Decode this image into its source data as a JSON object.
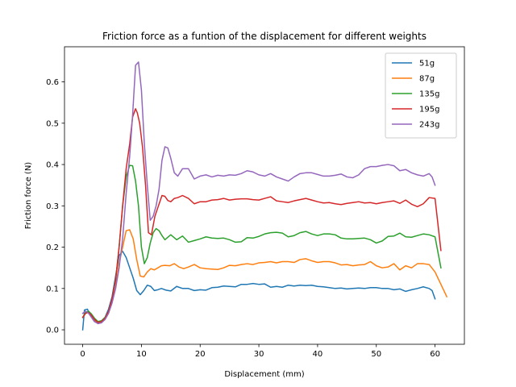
{
  "chart_data": {
    "type": "line",
    "title": "Friction force as a funtion of the displacement for different weights",
    "xlabel": "Displacement (mm)",
    "ylabel": "Friction force (N)",
    "xlim": [
      -3.1,
      65.0
    ],
    "ylim": [
      -0.035,
      0.685
    ],
    "xticks": [
      0,
      10,
      20,
      30,
      40,
      50,
      60
    ],
    "yticks": [
      0.0,
      0.1,
      0.2,
      0.3,
      0.4,
      0.5,
      0.6
    ],
    "grid": false,
    "legend_position": "upper right",
    "series": [
      {
        "name": "51g",
        "color": "#1f77b4",
        "x": [
          0,
          0.3,
          0.8,
          1.3,
          2,
          2.6,
          3.2,
          3.8,
          4.4,
          5,
          5.6,
          6.2,
          6.8,
          7.4,
          8,
          8.6,
          9.2,
          9.8,
          10.4,
          11,
          11.6,
          12.2,
          12.8,
          13.4,
          14.2,
          15,
          16,
          17,
          18,
          19,
          20,
          21,
          22,
          23,
          24,
          25,
          26,
          27,
          28,
          29,
          30,
          31,
          32,
          33,
          34,
          35,
          36,
          37,
          38,
          39,
          40,
          41,
          42,
          43,
          44,
          45,
          46,
          47,
          48,
          49,
          50,
          51,
          52,
          53,
          54,
          55,
          56,
          57,
          58,
          59,
          59.5,
          60
        ],
        "y": [
          0.0,
          0.048,
          0.05,
          0.035,
          0.02,
          0.018,
          0.02,
          0.03,
          0.05,
          0.08,
          0.13,
          0.18,
          0.19,
          0.175,
          0.15,
          0.125,
          0.095,
          0.085,
          0.095,
          0.108,
          0.105,
          0.095,
          0.097,
          0.1,
          0.096,
          0.094,
          0.105,
          0.1,
          0.1,
          0.095,
          0.097,
          0.096,
          0.102,
          0.103,
          0.106,
          0.105,
          0.104,
          0.11,
          0.11,
          0.112,
          0.11,
          0.111,
          0.103,
          0.105,
          0.103,
          0.108,
          0.106,
          0.108,
          0.107,
          0.108,
          0.105,
          0.104,
          0.102,
          0.1,
          0.101,
          0.099,
          0.1,
          0.101,
          0.1,
          0.102,
          0.102,
          0.1,
          0.1,
          0.097,
          0.099,
          0.093,
          0.097,
          0.1,
          0.104,
          0.1,
          0.095,
          0.075
        ]
      },
      {
        "name": "87g",
        "color": "#ff7f0e",
        "x": [
          0,
          0.5,
          1,
          1.5,
          2,
          2.6,
          3.2,
          3.8,
          4.4,
          5,
          5.6,
          6.2,
          6.8,
          7.4,
          8,
          8.6,
          9.2,
          9.8,
          10.4,
          11,
          11.6,
          12.2,
          12.8,
          13.4,
          14,
          14.8,
          15.6,
          16.4,
          17.2,
          18,
          19,
          20,
          21,
          22,
          23,
          24,
          25,
          26,
          27,
          28,
          29,
          30,
          31,
          32,
          33,
          34,
          35,
          36,
          37,
          38,
          39,
          40,
          41,
          42,
          43,
          44,
          45,
          46,
          47,
          48,
          49,
          50,
          51,
          52,
          53,
          54,
          55,
          56,
          57,
          58,
          59,
          60,
          61,
          62
        ],
        "y": [
          0.03,
          0.04,
          0.045,
          0.035,
          0.025,
          0.015,
          0.018,
          0.025,
          0.04,
          0.07,
          0.1,
          0.16,
          0.2,
          0.24,
          0.242,
          0.22,
          0.17,
          0.13,
          0.128,
          0.14,
          0.148,
          0.145,
          0.15,
          0.155,
          0.156,
          0.155,
          0.16,
          0.152,
          0.148,
          0.152,
          0.158,
          0.15,
          0.148,
          0.147,
          0.146,
          0.15,
          0.156,
          0.155,
          0.158,
          0.16,
          0.158,
          0.162,
          0.163,
          0.165,
          0.162,
          0.165,
          0.165,
          0.163,
          0.17,
          0.172,
          0.167,
          0.163,
          0.165,
          0.165,
          0.162,
          0.157,
          0.158,
          0.155,
          0.157,
          0.158,
          0.165,
          0.155,
          0.15,
          0.152,
          0.16,
          0.145,
          0.155,
          0.15,
          0.16,
          0.16,
          0.158,
          0.14,
          0.11,
          0.08
        ]
      },
      {
        "name": "135g",
        "color": "#2ca02c",
        "x": [
          0,
          0.5,
          1,
          1.5,
          2,
          2.6,
          3.2,
          3.8,
          4.4,
          5,
          5.6,
          6.2,
          6.8,
          7.4,
          8,
          8.5,
          9,
          9.5,
          10,
          10.5,
          11,
          11.5,
          12,
          12.5,
          13,
          13.5,
          14,
          15,
          16,
          17,
          18,
          19,
          20,
          21,
          22,
          23,
          24,
          25,
          26,
          27,
          28,
          29,
          30,
          31,
          32,
          33,
          34,
          35,
          36,
          37,
          38,
          39,
          40,
          41,
          42,
          43,
          44,
          45,
          46,
          47,
          48,
          49,
          50,
          51,
          52,
          53,
          54,
          55,
          56,
          57,
          58,
          59,
          60,
          61
        ],
        "y": [
          0.03,
          0.042,
          0.045,
          0.038,
          0.028,
          0.02,
          0.022,
          0.03,
          0.045,
          0.075,
          0.12,
          0.2,
          0.3,
          0.37,
          0.398,
          0.397,
          0.36,
          0.3,
          0.2,
          0.16,
          0.175,
          0.21,
          0.235,
          0.245,
          0.24,
          0.228,
          0.218,
          0.23,
          0.218,
          0.227,
          0.212,
          0.216,
          0.22,
          0.225,
          0.222,
          0.221,
          0.222,
          0.218,
          0.212,
          0.213,
          0.223,
          0.222,
          0.226,
          0.232,
          0.235,
          0.236,
          0.234,
          0.225,
          0.228,
          0.235,
          0.238,
          0.232,
          0.228,
          0.232,
          0.232,
          0.23,
          0.222,
          0.22,
          0.22,
          0.221,
          0.222,
          0.218,
          0.21,
          0.215,
          0.226,
          0.227,
          0.234,
          0.225,
          0.224,
          0.228,
          0.232,
          0.23,
          0.225,
          0.15
        ]
      },
      {
        "name": "195g",
        "color": "#d62728",
        "x": [
          0,
          0.5,
          1,
          1.5,
          2,
          2.6,
          3.2,
          3.8,
          4.4,
          5,
          5.6,
          6.2,
          6.8,
          7.4,
          8,
          8.5,
          9,
          9.3,
          9.7,
          10.2,
          10.7,
          11.2,
          11.7,
          12.3,
          12.9,
          13.5,
          14,
          14.5,
          15,
          15.6,
          16.2,
          17,
          18,
          19,
          20,
          21,
          22,
          23,
          24,
          25,
          26,
          27,
          28,
          29,
          30,
          31,
          32,
          33,
          34,
          35,
          36,
          37,
          38,
          39,
          40,
          41,
          42,
          43,
          44,
          45,
          46,
          47,
          48,
          49,
          50,
          51,
          52,
          53,
          54,
          55,
          56,
          57,
          58,
          59,
          60,
          61
        ],
        "y": [
          0.03,
          0.04,
          0.042,
          0.035,
          0.025,
          0.018,
          0.02,
          0.028,
          0.045,
          0.075,
          0.12,
          0.2,
          0.3,
          0.39,
          0.45,
          0.515,
          0.535,
          0.525,
          0.5,
          0.44,
          0.35,
          0.235,
          0.23,
          0.275,
          0.3,
          0.325,
          0.323,
          0.313,
          0.31,
          0.318,
          0.32,
          0.325,
          0.318,
          0.305,
          0.31,
          0.31,
          0.314,
          0.315,
          0.318,
          0.314,
          0.316,
          0.317,
          0.317,
          0.315,
          0.314,
          0.318,
          0.322,
          0.312,
          0.31,
          0.308,
          0.312,
          0.315,
          0.318,
          0.314,
          0.31,
          0.307,
          0.308,
          0.305,
          0.303,
          0.306,
          0.308,
          0.31,
          0.307,
          0.308,
          0.305,
          0.308,
          0.31,
          0.312,
          0.306,
          0.314,
          0.304,
          0.298,
          0.305,
          0.32,
          0.318,
          0.192
        ]
      },
      {
        "name": "243g",
        "color": "#9467bd",
        "x": [
          0,
          0.5,
          1,
          1.5,
          2,
          2.6,
          3.2,
          3.8,
          4.4,
          5,
          5.6,
          6.2,
          6.8,
          7.4,
          8,
          8.5,
          9,
          9.5,
          10,
          10.5,
          11,
          11.5,
          12,
          12.5,
          13,
          13.5,
          14,
          14.5,
          15,
          15.6,
          16.2,
          17,
          18,
          19,
          20,
          21,
          22,
          23,
          24,
          25,
          26,
          27,
          28,
          29,
          30,
          31,
          32,
          33,
          34,
          35,
          36,
          37,
          38,
          39,
          40,
          41,
          42,
          43,
          44,
          45,
          46,
          47,
          48,
          49,
          50,
          51,
          52,
          53,
          54,
          55,
          56,
          57,
          58,
          59,
          59.5,
          60
        ],
        "y": [
          0.04,
          0.045,
          0.04,
          0.03,
          0.02,
          0.015,
          0.017,
          0.025,
          0.04,
          0.065,
          0.1,
          0.15,
          0.22,
          0.33,
          0.42,
          0.52,
          0.64,
          0.648,
          0.58,
          0.45,
          0.35,
          0.265,
          0.275,
          0.3,
          0.34,
          0.41,
          0.443,
          0.44,
          0.415,
          0.38,
          0.372,
          0.39,
          0.39,
          0.365,
          0.372,
          0.375,
          0.37,
          0.374,
          0.372,
          0.375,
          0.374,
          0.378,
          0.385,
          0.382,
          0.375,
          0.372,
          0.378,
          0.37,
          0.365,
          0.36,
          0.37,
          0.378,
          0.38,
          0.38,
          0.376,
          0.372,
          0.372,
          0.374,
          0.377,
          0.37,
          0.368,
          0.375,
          0.39,
          0.395,
          0.395,
          0.398,
          0.4,
          0.397,
          0.385,
          0.388,
          0.38,
          0.375,
          0.372,
          0.378,
          0.37,
          0.35
        ]
      }
    ]
  }
}
